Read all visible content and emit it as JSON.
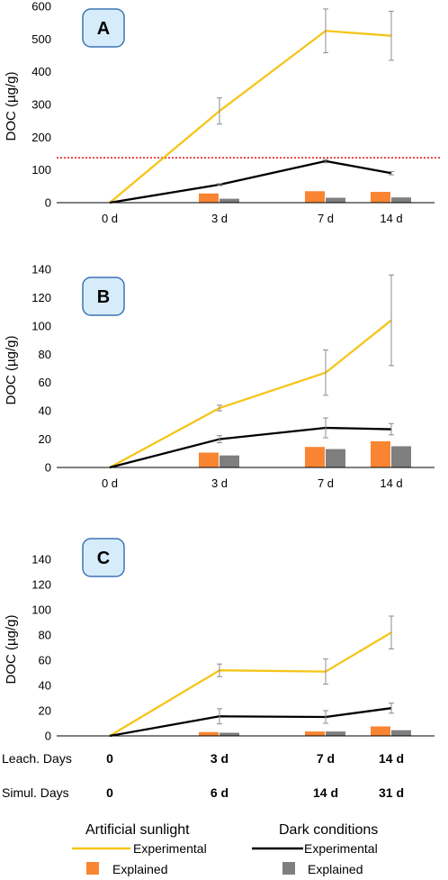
{
  "colors": {
    "sunlight_line": "#F5C518",
    "dark_line": "#000000",
    "sunlight_bar": "#F98532",
    "dark_bar": "#7F7F7F",
    "threshold": "#E8231E",
    "axis": "#000000",
    "error": "#8C8C8C",
    "badge_fill": "#D6ECFA",
    "badge_stroke": "#3C74B3"
  },
  "chart_data": [
    {
      "type": "line",
      "panel_label": "A",
      "ylabel": "DOC  (µg/g)",
      "categories": [
        "0 d",
        "3 d",
        "7 d",
        "14 d"
      ],
      "ylim": [
        0,
        600
      ],
      "yticks": [
        0,
        100,
        200,
        300,
        400,
        500,
        600
      ],
      "threshold": 137,
      "series": [
        {
          "name": "Artificial sunlight Experimental",
          "kind": "line",
          "color": "sunlight_line",
          "values": [
            0,
            280,
            525,
            510
          ],
          "errors": [
            0,
            40,
            67,
            75
          ]
        },
        {
          "name": "Dark conditions Experimental",
          "kind": "line",
          "color": "dark_line",
          "values": [
            0,
            55,
            127,
            90
          ],
          "errors": [
            0,
            3,
            5,
            5
          ]
        },
        {
          "name": "Artificial sunlight Explained",
          "kind": "bar",
          "color": "sunlight_bar",
          "values": [
            0,
            28,
            35,
            33
          ]
        },
        {
          "name": "Dark conditions Explained",
          "kind": "bar",
          "color": "dark_bar",
          "values": [
            0,
            12,
            15,
            16
          ]
        }
      ]
    },
    {
      "type": "line",
      "panel_label": "B",
      "ylabel": "DOC  (µg/g)",
      "categories": [
        "0 d",
        "3 d",
        "7 d",
        "14 d"
      ],
      "ylim": [
        0,
        140
      ],
      "yticks": [
        0,
        20,
        40,
        60,
        80,
        100,
        120,
        140
      ],
      "series": [
        {
          "name": "Artificial sunlight Experimental",
          "kind": "line",
          "color": "sunlight_line",
          "values": [
            0,
            42,
            67,
            104
          ],
          "errors": [
            0,
            2,
            16,
            32
          ]
        },
        {
          "name": "Dark conditions Experimental",
          "kind": "line",
          "color": "dark_line",
          "values": [
            0,
            20,
            28,
            27
          ],
          "errors": [
            0,
            2.5,
            7,
            4
          ]
        },
        {
          "name": "Artificial sunlight Explained",
          "kind": "bar",
          "color": "sunlight_bar",
          "values": [
            0,
            10.5,
            14.5,
            18.5
          ]
        },
        {
          "name": "Dark conditions Explained",
          "kind": "bar",
          "color": "dark_bar",
          "values": [
            0,
            8.5,
            13,
            15
          ]
        }
      ]
    },
    {
      "type": "line",
      "panel_label": "C",
      "ylabel": "DOC  (µg/g)",
      "categories": [
        "0",
        "3 d",
        "7 d",
        "14 d"
      ],
      "ylim": [
        0,
        140
      ],
      "yticks": [
        0,
        20,
        40,
        60,
        80,
        100,
        120,
        140
      ],
      "series": [
        {
          "name": "Artificial sunlight Experimental",
          "kind": "line",
          "color": "sunlight_line",
          "values": [
            0,
            52,
            51,
            82
          ],
          "errors": [
            0,
            5,
            10,
            13
          ]
        },
        {
          "name": "Dark conditions Experimental",
          "kind": "line",
          "color": "dark_line",
          "values": [
            0,
            15.5,
            15,
            22
          ],
          "errors": [
            0,
            6,
            5,
            4
          ]
        },
        {
          "name": "Artificial sunlight Explained",
          "kind": "bar",
          "color": "sunlight_bar",
          "values": [
            0,
            3,
            3.5,
            7.5
          ]
        },
        {
          "name": "Dark conditions Explained",
          "kind": "bar",
          "color": "dark_bar",
          "values": [
            0,
            2.5,
            3.5,
            4.5
          ]
        }
      ]
    }
  ],
  "bottom_rows": {
    "leach_label": "Leach. Days",
    "leach_values": [
      "0",
      "3 d",
      "7 d",
      "14 d"
    ],
    "simul_label": "Simul. Days",
    "simul_values": [
      "0",
      "6 d",
      "14 d",
      "31 d"
    ]
  },
  "legend": {
    "sunlight_title": "Artificial sunlight",
    "dark_title": "Dark conditions",
    "sunlight_line_label": "Experimental",
    "sunlight_bar_label": "Explained",
    "dark_line_label": "Experimental",
    "dark_bar_label": "Explained"
  }
}
